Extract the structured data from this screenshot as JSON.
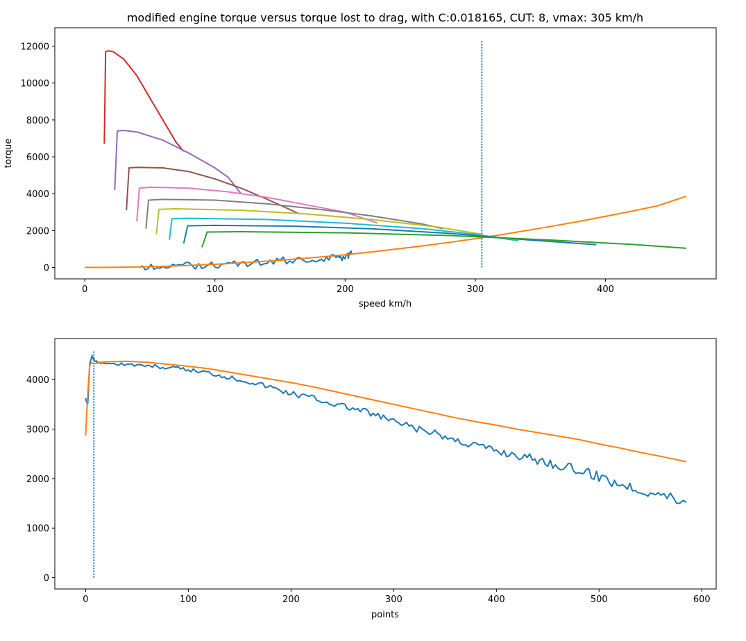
{
  "chart_data": [
    {
      "type": "line",
      "title": "modified engine torque versus torque lost to drag, with C:0.018165, CUT: 8, vmax: 305 km/h",
      "xlabel": "speed km/h",
      "ylabel": "torque",
      "xlim": [
        -23,
        485
      ],
      "ylim": [
        -620,
        13000
      ],
      "xticks": [
        0,
        100,
        200,
        300,
        400
      ],
      "yticks": [
        0,
        2000,
        4000,
        6000,
        8000,
        10000,
        12000
      ],
      "vline": {
        "x": 305,
        "ymin": 0,
        "ymax": 12300,
        "color": "#1f77b4",
        "style": "dotted"
      },
      "grid": false,
      "legend": "none",
      "series": [
        {
          "color": "#1f77b4",
          "x": [
            42,
            60,
            80,
            100,
            120,
            140,
            160,
            180,
            195,
            200,
            205
          ],
          "y": [
            20,
            60,
            90,
            150,
            220,
            300,
            380,
            480,
            560,
            650,
            760
          ],
          "noisy": true
        },
        {
          "color": "#ff7f0e",
          "x": [
            0,
            20,
            40,
            60,
            80,
            100,
            120,
            140,
            160,
            180,
            200,
            220,
            240,
            260,
            280,
            300,
            320,
            340,
            360,
            380,
            400,
            420,
            440,
            462
          ],
          "y": [
            0,
            6,
            25,
            60,
            110,
            170,
            250,
            340,
            445,
            560,
            690,
            840,
            1000,
            1170,
            1360,
            1560,
            1780,
            2010,
            2250,
            2500,
            2770,
            3050,
            3340,
            3860
          ]
        },
        {
          "color": "#d62728",
          "x": [
            15,
            16,
            18,
            22,
            30,
            40,
            50,
            60,
            70,
            76
          ],
          "y": [
            6700,
            11700,
            11750,
            11700,
            11300,
            10400,
            9200,
            8000,
            6800,
            6300
          ]
        },
        {
          "color": "#9467bd",
          "x": [
            23,
            25,
            30,
            40,
            60,
            80,
            100,
            110,
            120
          ],
          "y": [
            4200,
            7400,
            7430,
            7350,
            6900,
            6200,
            5400,
            4900,
            4000
          ]
        },
        {
          "color": "#8c564b",
          "x": [
            32,
            34,
            40,
            60,
            80,
            100,
            120,
            140,
            165
          ],
          "y": [
            3100,
            5400,
            5430,
            5400,
            5200,
            4800,
            4300,
            3700,
            2900
          ]
        },
        {
          "color": "#e377c2",
          "x": [
            40,
            42,
            50,
            80,
            110,
            140,
            170,
            200,
            225
          ],
          "y": [
            2500,
            4300,
            4350,
            4300,
            4100,
            3800,
            3400,
            3000,
            2400
          ]
        },
        {
          "color": "#7f7f7f",
          "x": [
            47,
            49,
            60,
            100,
            140,
            180,
            220,
            260,
            275
          ],
          "y": [
            2100,
            3650,
            3690,
            3650,
            3450,
            3150,
            2800,
            2350,
            2100
          ]
        },
        {
          "color": "#bcbd22",
          "x": [
            55,
            57,
            70,
            120,
            170,
            220,
            270,
            305
          ],
          "y": [
            1800,
            3150,
            3180,
            3100,
            2900,
            2600,
            2200,
            1800
          ]
        },
        {
          "color": "#17becf",
          "x": [
            65,
            67,
            80,
            140,
            200,
            260,
            300,
            333
          ],
          "y": [
            1500,
            2650,
            2670,
            2600,
            2400,
            2100,
            1800,
            1450
          ]
        },
        {
          "color": "#1f77b4",
          "x": [
            76,
            79,
            100,
            160,
            220,
            280,
            340,
            393
          ],
          "y": [
            1300,
            2260,
            2280,
            2240,
            2100,
            1850,
            1500,
            1230
          ]
        },
        {
          "color": "#2ca02c",
          "x": [
            90,
            94,
            120,
            200,
            280,
            360,
            420,
            462
          ],
          "y": [
            1100,
            1920,
            1940,
            1880,
            1730,
            1480,
            1250,
            1040
          ]
        }
      ]
    },
    {
      "type": "line",
      "title": "",
      "xlabel": "points",
      "ylabel": "",
      "xlim": [
        -30,
        614
      ],
      "ylim": [
        -230,
        4830
      ],
      "xticks": [
        0,
        100,
        200,
        300,
        400,
        500,
        600
      ],
      "yticks": [
        0,
        1000,
        2000,
        3000,
        4000
      ],
      "vline": {
        "x": 8,
        "ymin": 0,
        "ymax": 4600,
        "color": "#1f77b4",
        "style": "dotted"
      },
      "grid": false,
      "legend": "none",
      "series": [
        {
          "color": "#1f77b4",
          "x": [
            0,
            2,
            4,
            6,
            8,
            12,
            20,
            40,
            60,
            80,
            100,
            120,
            140,
            160,
            180,
            200,
            220,
            240,
            260,
            280,
            300,
            320,
            340,
            360,
            380,
            400,
            420,
            440,
            460,
            480,
            500,
            520,
            540,
            560,
            585
          ],
          "y": [
            3620,
            3500,
            4300,
            4470,
            4420,
            4340,
            4330,
            4310,
            4280,
            4240,
            4200,
            4140,
            4050,
            3960,
            3850,
            3720,
            3640,
            3520,
            3420,
            3300,
            3150,
            3020,
            2900,
            2780,
            2680,
            2560,
            2480,
            2380,
            2280,
            2160,
            2040,
            1900,
            1780,
            1680,
            1520
          ],
          "noisy": true
        },
        {
          "color": "#ff7f0e",
          "x": [
            0,
            2,
            4,
            6,
            8,
            20,
            40,
            60,
            80,
            100,
            120,
            140,
            160,
            180,
            200,
            220,
            240,
            260,
            280,
            300,
            320,
            340,
            360,
            380,
            400,
            420,
            440,
            460,
            480,
            500,
            520,
            540,
            560,
            585
          ],
          "y": [
            2870,
            3700,
            4300,
            4340,
            4320,
            4360,
            4370,
            4350,
            4310,
            4270,
            4220,
            4150,
            4080,
            4010,
            3940,
            3860,
            3770,
            3680,
            3590,
            3500,
            3410,
            3320,
            3230,
            3150,
            3080,
            3000,
            2930,
            2860,
            2790,
            2700,
            2620,
            2530,
            2450,
            2340
          ]
        }
      ]
    }
  ]
}
